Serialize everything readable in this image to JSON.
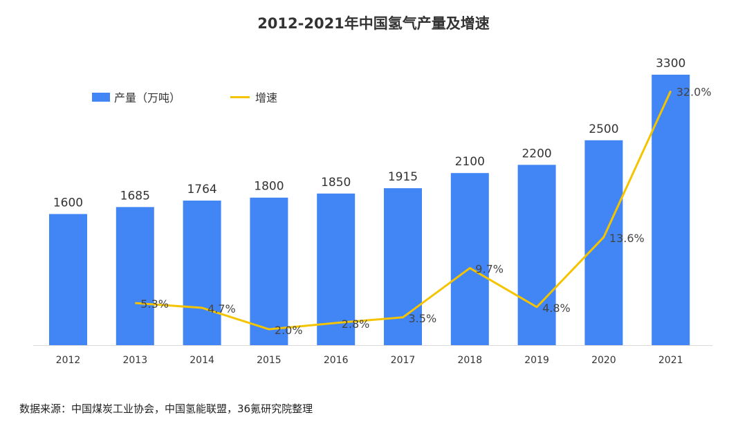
{
  "chart_data": {
    "type": "bar",
    "title": "2012-2021年中国氢气产量及增速",
    "categories": [
      "2012",
      "2013",
      "2014",
      "2015",
      "2016",
      "2017",
      "2018",
      "2019",
      "2020",
      "2021"
    ],
    "series": [
      {
        "name": "产量（万吨）",
        "type": "bar",
        "values": [
          1600,
          1685,
          1764,
          1800,
          1850,
          1915,
          2100,
          2200,
          2500,
          3300
        ],
        "labels": [
          "1600",
          "1685",
          "1764",
          "1800",
          "1850",
          "1915",
          "2100",
          "2200",
          "2500",
          "3300"
        ]
      },
      {
        "name": "增速",
        "type": "line",
        "values": [
          null,
          5.3,
          4.7,
          2.0,
          2.8,
          3.5,
          9.7,
          4.8,
          13.6,
          32.0
        ],
        "labels": [
          "",
          "5.3%",
          "4.7%",
          "2.0%",
          "2.8%",
          "3.5%",
          "9.7%",
          "4.8%",
          "13.6%",
          "32.0%"
        ]
      }
    ],
    "ylim": [
      0,
      3300
    ],
    "y2lim": [
      0,
      33
    ],
    "grid": false,
    "legend": "top-left",
    "colors": {
      "bar": "#4285F4",
      "line": "#F5C400"
    }
  },
  "source": "数据来源：中国煤炭工业协会，中国氢能联盟，36氪研究院整理"
}
